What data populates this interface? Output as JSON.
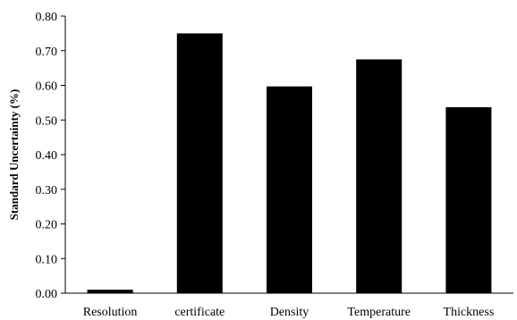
{
  "chart_data": {
    "type": "bar",
    "title": "",
    "xlabel": "",
    "ylabel": "Standard Uncertainty (%)",
    "categories": [
      "Resolution",
      "certificate",
      "Density",
      "Temperature",
      "Thickness"
    ],
    "values": [
      0.01,
      0.75,
      0.597,
      0.675,
      0.537
    ],
    "ylim": [
      0,
      0.8
    ],
    "yticks": [
      "0.00",
      "0.10",
      "0.20",
      "0.30",
      "0.40",
      "0.50",
      "0.60",
      "0.70",
      "0.80"
    ],
    "grid": false,
    "legend": "none",
    "bar_color": "#000000"
  }
}
